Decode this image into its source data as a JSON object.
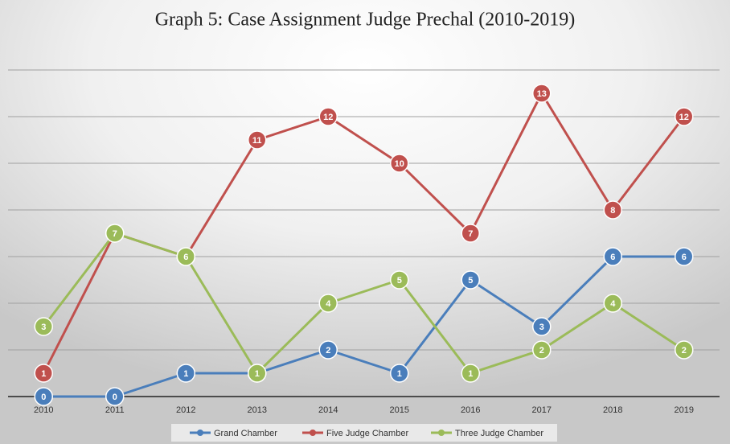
{
  "chart_data": {
    "type": "line",
    "title": "Graph 5: Case Assignment Judge Prechal (2010-2019)",
    "categories": [
      "2010",
      "2011",
      "2012",
      "2013",
      "2014",
      "2015",
      "2016",
      "2017",
      "2018",
      "2019"
    ],
    "series": [
      {
        "name": "Grand Chamber",
        "color": "#4a7ebb",
        "values": [
          0,
          0,
          1,
          1,
          2,
          1,
          5,
          3,
          6,
          6
        ]
      },
      {
        "name": "Five Judge Chamber",
        "color": "#c0504d",
        "values": [
          1,
          7,
          6,
          11,
          12,
          10,
          7,
          13,
          8,
          12
        ]
      },
      {
        "name": "Three Judge Chamber",
        "color": "#9bbb59",
        "values": [
          3,
          7,
          6,
          1,
          4,
          5,
          1,
          2,
          4,
          2
        ]
      }
    ],
    "ylim": [
      0,
      14
    ],
    "yticks": [
      0,
      2,
      4,
      6,
      8,
      10,
      12,
      14
    ],
    "grid": true,
    "legend": "bottom"
  }
}
